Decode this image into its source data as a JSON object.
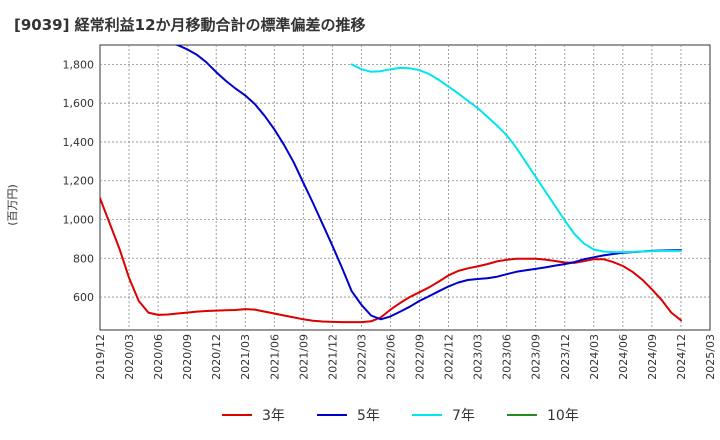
{
  "chart_data": {
    "type": "line",
    "title": "[9039]  経常利益12か月移動合計の標準偏差の推移",
    "ylabel": "(百万円)",
    "xlabel": "",
    "ylim": [
      430,
      1900
    ],
    "xlim": [
      "2019-12",
      "2025-03"
    ],
    "y_ticks": [
      600,
      800,
      1000,
      1200,
      1400,
      1600,
      1800
    ],
    "y_tick_labels": [
      "600",
      "800",
      "1,000",
      "1,200",
      "1,400",
      "1,600",
      "1,800"
    ],
    "x_tick_labels": [
      "2019/12",
      "2020/03",
      "2020/06",
      "2020/09",
      "2020/12",
      "2021/03",
      "2021/06",
      "2021/09",
      "2021/12",
      "2022/03",
      "2022/06",
      "2022/09",
      "2022/12",
      "2023/03",
      "2023/06",
      "2023/09",
      "2023/12",
      "2024/03",
      "2024/06",
      "2024/09",
      "2024/12",
      "2025/03"
    ],
    "grid": true,
    "legend_position": "bottom",
    "series": [
      {
        "name": "3年",
        "color": "#dd0000",
        "points": [
          [
            "2019-12",
            1110
          ],
          [
            "2020-01",
            980
          ],
          [
            "2020-02",
            850
          ],
          [
            "2020-03",
            700
          ],
          [
            "2020-04",
            580
          ],
          [
            "2020-05",
            520
          ],
          [
            "2020-06",
            508
          ],
          [
            "2020-07",
            510
          ],
          [
            "2020-08",
            515
          ],
          [
            "2020-09",
            520
          ],
          [
            "2020-10",
            525
          ],
          [
            "2020-11",
            528
          ],
          [
            "2020-12",
            530
          ],
          [
            "2021-01",
            532
          ],
          [
            "2021-02",
            533
          ],
          [
            "2021-03",
            538
          ],
          [
            "2021-04",
            535
          ],
          [
            "2021-05",
            525
          ],
          [
            "2021-06",
            515
          ],
          [
            "2021-07",
            505
          ],
          [
            "2021-08",
            495
          ],
          [
            "2021-09",
            485
          ],
          [
            "2021-10",
            478
          ],
          [
            "2021-11",
            474
          ],
          [
            "2021-12",
            472
          ],
          [
            "2022-01",
            471
          ],
          [
            "2022-02",
            471
          ],
          [
            "2022-03",
            471
          ],
          [
            "2022-04",
            475
          ],
          [
            "2022-05",
            495
          ],
          [
            "2022-06",
            535
          ],
          [
            "2022-07",
            570
          ],
          [
            "2022-08",
            600
          ],
          [
            "2022-09",
            625
          ],
          [
            "2022-10",
            650
          ],
          [
            "2022-11",
            680
          ],
          [
            "2022-12",
            712
          ],
          [
            "2023-01",
            735
          ],
          [
            "2023-02",
            748
          ],
          [
            "2023-03",
            758
          ],
          [
            "2023-04",
            770
          ],
          [
            "2023-05",
            784
          ],
          [
            "2023-06",
            792
          ],
          [
            "2023-07",
            797
          ],
          [
            "2023-08",
            798
          ],
          [
            "2023-09",
            797
          ],
          [
            "2023-10",
            793
          ],
          [
            "2023-11",
            786
          ],
          [
            "2023-12",
            778
          ],
          [
            "2024-01",
            776
          ],
          [
            "2024-02",
            785
          ],
          [
            "2024-03",
            795
          ],
          [
            "2024-04",
            795
          ],
          [
            "2024-05",
            780
          ],
          [
            "2024-06",
            760
          ],
          [
            "2024-07",
            730
          ],
          [
            "2024-08",
            690
          ],
          [
            "2024-09",
            640
          ],
          [
            "2024-10",
            585
          ],
          [
            "2024-11",
            520
          ],
          [
            "2024-12",
            480
          ]
        ]
      },
      {
        "name": "5年",
        "color": "#0000cc",
        "points": [
          [
            "2020-03",
            1955
          ],
          [
            "2020-04",
            1940
          ],
          [
            "2020-05",
            1930
          ],
          [
            "2020-06",
            1922
          ],
          [
            "2020-07",
            1915
          ],
          [
            "2020-08",
            1900
          ],
          [
            "2020-09",
            1878
          ],
          [
            "2020-10",
            1850
          ],
          [
            "2020-11",
            1810
          ],
          [
            "2020-12",
            1760
          ],
          [
            "2021-01",
            1715
          ],
          [
            "2021-02",
            1675
          ],
          [
            "2021-03",
            1640
          ],
          [
            "2021-04",
            1595
          ],
          [
            "2021-05",
            1535
          ],
          [
            "2021-06",
            1465
          ],
          [
            "2021-07",
            1385
          ],
          [
            "2021-08",
            1295
          ],
          [
            "2021-09",
            1190
          ],
          [
            "2021-10",
            1085
          ],
          [
            "2021-11",
            975
          ],
          [
            "2021-12",
            865
          ],
          [
            "2022-01",
            750
          ],
          [
            "2022-02",
            630
          ],
          [
            "2022-03",
            560
          ],
          [
            "2022-04",
            505
          ],
          [
            "2022-05",
            485
          ],
          [
            "2022-06",
            500
          ],
          [
            "2022-07",
            525
          ],
          [
            "2022-08",
            550
          ],
          [
            "2022-09",
            580
          ],
          [
            "2022-10",
            605
          ],
          [
            "2022-11",
            630
          ],
          [
            "2022-12",
            655
          ],
          [
            "2023-01",
            675
          ],
          [
            "2023-02",
            688
          ],
          [
            "2023-03",
            693
          ],
          [
            "2023-04",
            697
          ],
          [
            "2023-05",
            705
          ],
          [
            "2023-06",
            718
          ],
          [
            "2023-07",
            730
          ],
          [
            "2023-08",
            738
          ],
          [
            "2023-09",
            745
          ],
          [
            "2023-10",
            753
          ],
          [
            "2023-11",
            762
          ],
          [
            "2023-12",
            770
          ],
          [
            "2024-01",
            780
          ],
          [
            "2024-02",
            795
          ],
          [
            "2024-03",
            805
          ],
          [
            "2024-04",
            815
          ],
          [
            "2024-05",
            822
          ],
          [
            "2024-06",
            828
          ],
          [
            "2024-07",
            832
          ],
          [
            "2024-08",
            835
          ],
          [
            "2024-09",
            838
          ],
          [
            "2024-10",
            840
          ],
          [
            "2024-11",
            841
          ],
          [
            "2024-12",
            842
          ]
        ]
      },
      {
        "name": "7年",
        "color": "#00e5ee",
        "points": [
          [
            "2022-02",
            1800
          ],
          [
            "2022-03",
            1775
          ],
          [
            "2022-04",
            1762
          ],
          [
            "2022-05",
            1765
          ],
          [
            "2022-06",
            1775
          ],
          [
            "2022-07",
            1782
          ],
          [
            "2022-08",
            1780
          ],
          [
            "2022-09",
            1770
          ],
          [
            "2022-10",
            1750
          ],
          [
            "2022-11",
            1720
          ],
          [
            "2022-12",
            1685
          ],
          [
            "2023-01",
            1650
          ],
          [
            "2023-02",
            1612
          ],
          [
            "2023-03",
            1575
          ],
          [
            "2023-04",
            1530
          ],
          [
            "2023-05",
            1485
          ],
          [
            "2023-06",
            1435
          ],
          [
            "2023-07",
            1370
          ],
          [
            "2023-08",
            1295
          ],
          [
            "2023-09",
            1220
          ],
          [
            "2023-10",
            1145
          ],
          [
            "2023-11",
            1070
          ],
          [
            "2023-12",
            995
          ],
          [
            "2024-01",
            925
          ],
          [
            "2024-02",
            875
          ],
          [
            "2024-03",
            845
          ],
          [
            "2024-04",
            835
          ],
          [
            "2024-05",
            832
          ],
          [
            "2024-06",
            832
          ],
          [
            "2024-07",
            833
          ],
          [
            "2024-08",
            835
          ],
          [
            "2024-09",
            837
          ],
          [
            "2024-10",
            838
          ],
          [
            "2024-11",
            838
          ],
          [
            "2024-12",
            838
          ]
        ]
      },
      {
        "name": "10年",
        "color": "#228b22",
        "points": []
      }
    ]
  }
}
